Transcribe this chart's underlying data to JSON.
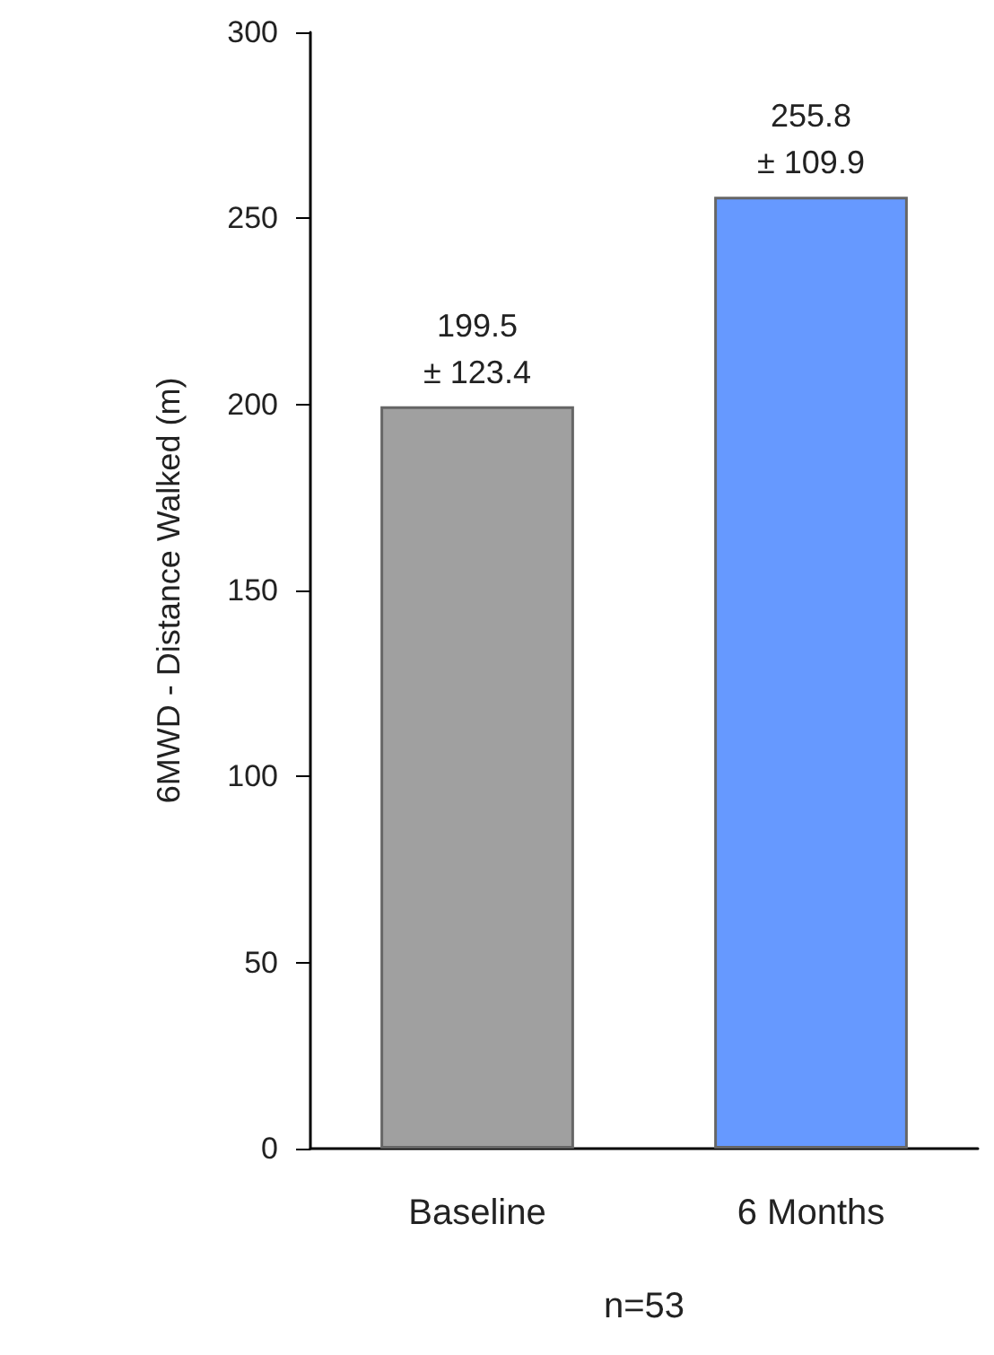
{
  "chart_data": {
    "type": "bar",
    "ylabel": "6MWD - Distance Walked (m)",
    "categories": [
      "Baseline",
      "6 Months"
    ],
    "values": [
      199.5,
      255.8
    ],
    "colors": [
      "#a0a0a0",
      "#6699ff"
    ],
    "value_labels": [
      "199.5\n± 123.4",
      "255.8\n± 109.9"
    ],
    "ylim": [
      0,
      300
    ],
    "yticks": [
      0,
      50,
      100,
      150,
      200,
      250,
      300
    ],
    "grid": false,
    "annotations": [
      "n=53"
    ]
  }
}
